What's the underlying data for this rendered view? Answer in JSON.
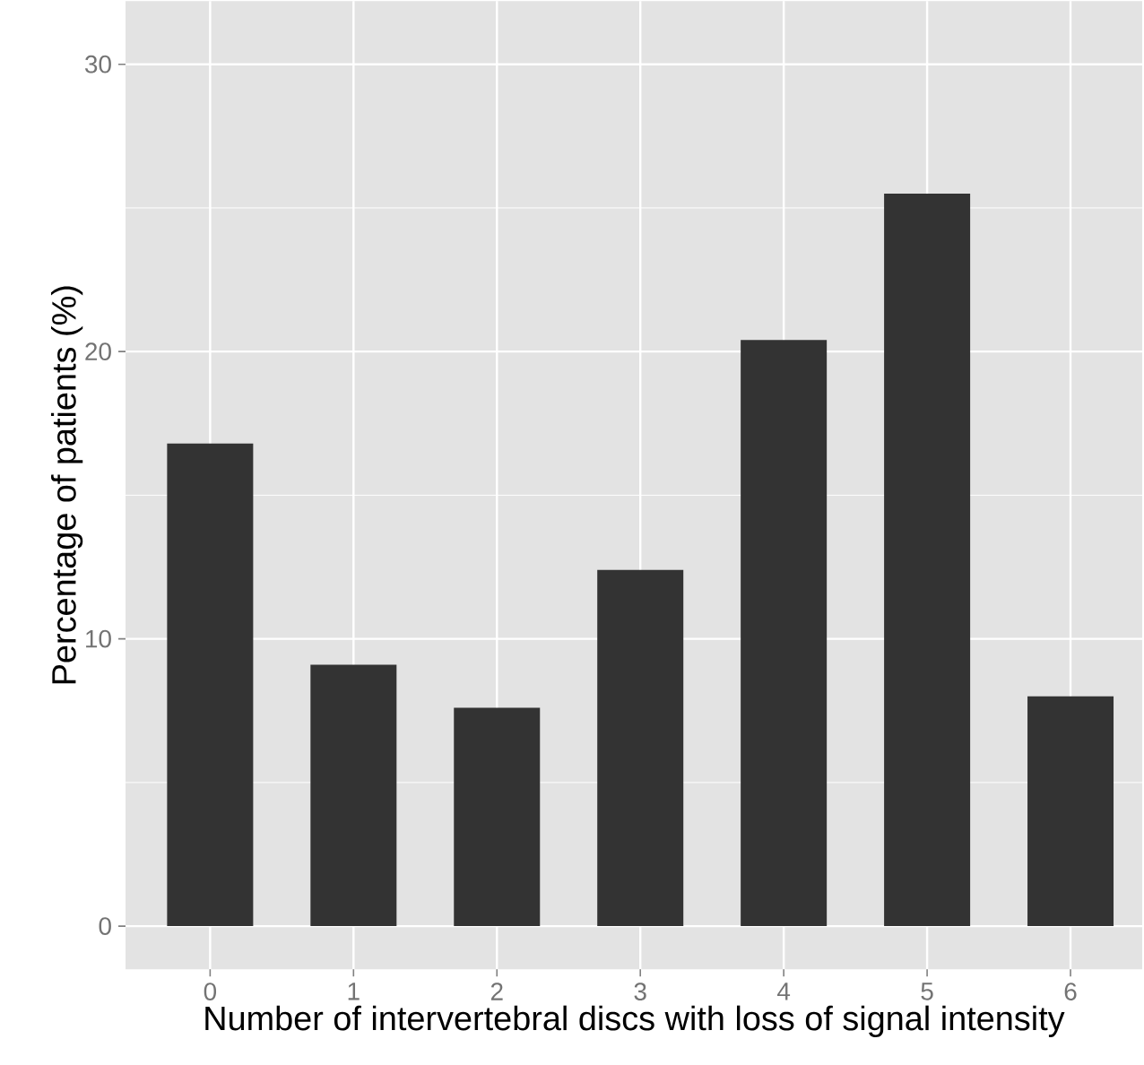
{
  "chart_data": {
    "type": "bar",
    "xlabel": "Number of intervertebral discs with loss of signal intensity",
    "ylabel": "Percentage of patients (%)",
    "categories": [
      "0",
      "1",
      "2",
      "3",
      "4",
      "5",
      "6"
    ],
    "values": [
      16.8,
      9.1,
      7.6,
      12.4,
      20.4,
      25.5,
      8.0
    ],
    "color": "#333333",
    "ylim": [
      -1.5,
      32.2
    ],
    "yticks": [
      0,
      10,
      20,
      30
    ],
    "grid": true
  }
}
